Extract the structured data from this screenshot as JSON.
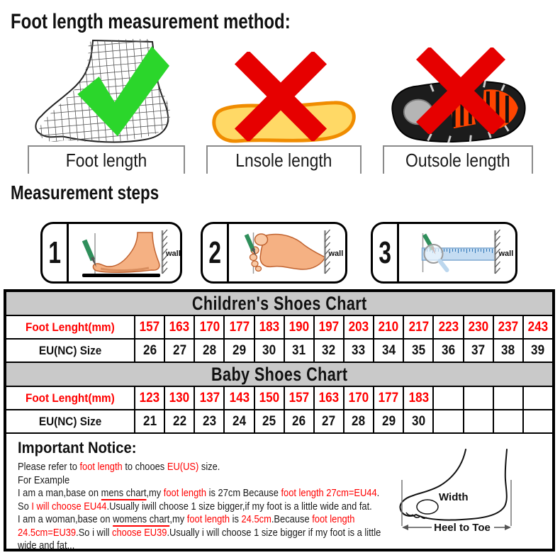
{
  "page": {
    "title": "Foot length measurement method:",
    "steps_title": "Measurement steps"
  },
  "colors": {
    "accent_red": "#ff0000",
    "check_green": "#2bd62b",
    "x_red": "#e60000",
    "insole_yellow": "#ffd966",
    "insole_orange": "#f08c00",
    "table_header_gray": "#c9c9c9"
  },
  "method_items": [
    {
      "label": "Foot length",
      "status": "correct",
      "icon": "foot-wireframe-check"
    },
    {
      "label": "Lnsole length",
      "status": "wrong",
      "icon": "insole-red-x"
    },
    {
      "label": "Outsole length",
      "status": "wrong",
      "icon": "outsole-red-x"
    }
  ],
  "steps": [
    {
      "number": "1",
      "wall_label": "wall"
    },
    {
      "number": "2",
      "wall_label": "wall"
    },
    {
      "number": "3",
      "wall_label": "wall"
    }
  ],
  "charts": [
    {
      "title": "Children's Shoes Chart",
      "rows": [
        {
          "label": "Foot Lenght(mm)",
          "color": "red",
          "values": [
            "157",
            "163",
            "170",
            "177",
            "183",
            "190",
            "197",
            "203",
            "210",
            "217",
            "223",
            "230",
            "237",
            "243"
          ]
        },
        {
          "label": "EU(NC) Size",
          "color": "black",
          "values": [
            "26",
            "27",
            "28",
            "29",
            "30",
            "31",
            "32",
            "33",
            "34",
            "35",
            "36",
            "37",
            "38",
            "39"
          ]
        }
      ]
    },
    {
      "title": "Baby Shoes Chart",
      "rows": [
        {
          "label": "Foot Lenght(mm)",
          "color": "red",
          "values": [
            "123",
            "130",
            "137",
            "143",
            "150",
            "157",
            "163",
            "170",
            "177",
            "183",
            "",
            "",
            "",
            ""
          ]
        },
        {
          "label": "EU(NC) Size",
          "color": "black",
          "values": [
            "21",
            "22",
            "23",
            "24",
            "25",
            "26",
            "27",
            "28",
            "29",
            "30",
            "",
            "",
            "",
            ""
          ]
        }
      ]
    }
  ],
  "notice": {
    "title": "Important Notice:",
    "lines": [
      [
        {
          "t": "Please refer to "
        },
        {
          "t": "foot length",
          "c": "red"
        },
        {
          "t": " to chooes "
        },
        {
          "t": "EU(US)",
          "c": "red"
        },
        {
          "t": " size."
        }
      ],
      [
        {
          "t": "For Example"
        }
      ],
      [
        {
          "t": "I am a man,base on "
        },
        {
          "t": "mens chart",
          "u": true
        },
        {
          "t": ",my "
        },
        {
          "t": "foot length",
          "c": "red"
        },
        {
          "t": " is 27cm Because "
        },
        {
          "t": "foot length 27cm=EU44",
          "c": "red"
        },
        {
          "t": "."
        }
      ],
      [
        {
          "t": "So "
        },
        {
          "t": "I will choose EU44",
          "c": "red"
        },
        {
          "t": ".Usually iwill choose 1 size bigger,if my foot is a little wide and fat."
        }
      ],
      [
        {
          "t": "I am a woman,base on "
        },
        {
          "t": "womens chart",
          "u": true
        },
        {
          "t": ",my "
        },
        {
          "t": "foot length",
          "c": "red"
        },
        {
          "t": " is "
        },
        {
          "t": "24.5cm",
          "c": "red"
        },
        {
          "t": ".Because "
        },
        {
          "t": "foot length",
          "c": "red"
        }
      ],
      [
        {
          "t": "24.5cm=EU39",
          "c": "red"
        },
        {
          "t": ".So i will "
        },
        {
          "t": "choose EU39",
          "c": "red"
        },
        {
          "t": ".Usually i will choose 1 size bigger if my foot is a little"
        }
      ],
      [
        {
          "t": "wide and fat..."
        }
      ]
    ],
    "diagram": {
      "width_label": "Width",
      "heel_label": "Heel to Toe"
    }
  }
}
